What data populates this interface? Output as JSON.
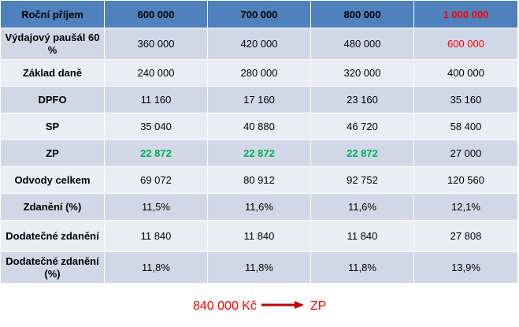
{
  "header": [
    "Roční příjem",
    "600 000",
    "700 000",
    "800 000",
    "1 000 000"
  ],
  "rows": [
    {
      "label": "Výdajový paušál 60 %",
      "cells": [
        "360 000",
        "420 000",
        "480 000",
        "600 000"
      ]
    },
    {
      "label": "Základ daně",
      "cells": [
        "240 000",
        "280 000",
        "320 000",
        "400 000"
      ]
    },
    {
      "label": "DPFO",
      "cells": [
        "11 160",
        "17 160",
        "23 160",
        "35 160"
      ]
    },
    {
      "label": "SP",
      "cells": [
        "35 040",
        "40 880",
        "46 720",
        "58 400"
      ]
    },
    {
      "label": "ZP",
      "cells": [
        "22 872",
        "22 872",
        "22 872",
        "27 000"
      ]
    },
    {
      "label": "Odvody celkem",
      "cells": [
        "69 072",
        "80 912",
        "92 752",
        "120 560"
      ]
    },
    {
      "label": "Zdanění (%)",
      "cells": [
        "11,5%",
        "11,6%",
        "11,6%",
        "12,1%"
      ]
    },
    {
      "label": "Dodatečné zdanění",
      "cells": [
        "11 840",
        "11 840",
        "11 840",
        "27 808"
      ]
    },
    {
      "label": "Dodatečné zdanění (%)",
      "cells": [
        "11,8%",
        "11,8%",
        "11,8%",
        "13,9%"
      ]
    }
  ],
  "note": {
    "amount": "840 000 Kč",
    "target": "ZP"
  },
  "colors": {
    "header_bg": "#4f81bd",
    "row_dark": "#d0d8e8",
    "row_light": "#e9edf4",
    "highlight_red": "#ff0000",
    "highlight_green": "#00b050"
  }
}
